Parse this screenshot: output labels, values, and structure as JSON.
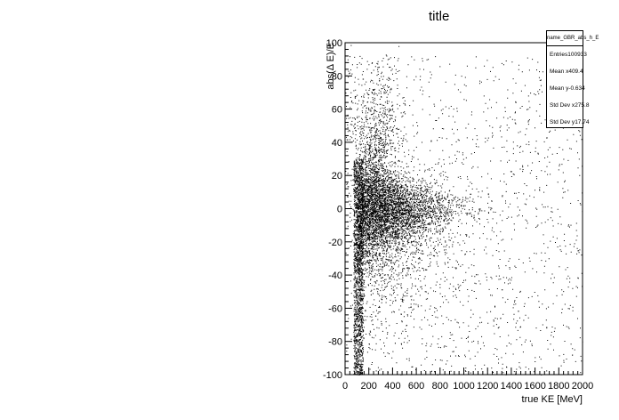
{
  "chart_data": {
    "type": "scatter",
    "title": "title",
    "xlabel": "true KE [MeV]",
    "ylabel": "abs(Δ E)/E",
    "xlim": [
      0,
      2000
    ],
    "ylim": [
      -100,
      100
    ],
    "xticks": [
      0,
      200,
      400,
      600,
      800,
      1000,
      1200,
      1400,
      1600,
      1800,
      2000
    ],
    "yticks": [
      -100,
      -80,
      -60,
      -40,
      -20,
      0,
      20,
      40,
      60,
      80,
      100
    ],
    "grid": false,
    "legend": "none",
    "point_color": "#000000",
    "stats": {
      "name": "name_GBR_abs_h_E",
      "rows": [
        {
          "label": "Entries",
          "value": "100933"
        },
        {
          "label": "Mean x",
          "value": "409.4"
        },
        {
          "label": "Mean y",
          "value": "-0.634"
        },
        {
          "label": "Std Dev x",
          "value": "275.8"
        },
        {
          "label": "Std Dev y",
          "value": "17.74"
        }
      ]
    },
    "distribution": {
      "entries": 100933,
      "mean_x": 409.4,
      "mean_y": -0.634,
      "std_x": 275.8,
      "std_y": 17.74
    }
  }
}
